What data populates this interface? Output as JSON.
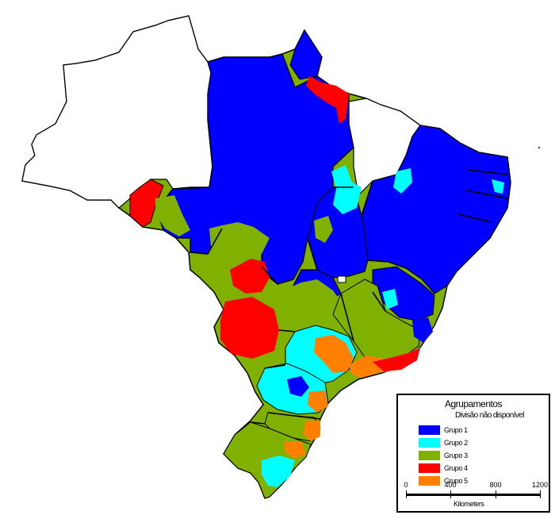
{
  "colors": {
    "grupo1": "#0000ff",
    "grupo2": "#00ffff",
    "grupo3": "#80b000",
    "grupo4": "#ff0000",
    "grupo5": "#ff8000",
    "unavailable": "#ffffff",
    "border": "#000000"
  },
  "legend": {
    "title": "Agrupamentos",
    "unavailable_label": "Divisão não disponível",
    "items": [
      {
        "label": "Grupo 1",
        "color": "#0000ff"
      },
      {
        "label": "Grupo 2",
        "color": "#00ffff"
      },
      {
        "label": "Grupo 3",
        "color": "#80b000"
      },
      {
        "label": "Grupo 4",
        "color": "#ff0000"
      },
      {
        "label": "Grupo 5",
        "color": "#ff8000"
      }
    ]
  },
  "scale": {
    "ticks": [
      "0",
      "400",
      "800",
      "1200"
    ],
    "unit": "Kilometers"
  }
}
